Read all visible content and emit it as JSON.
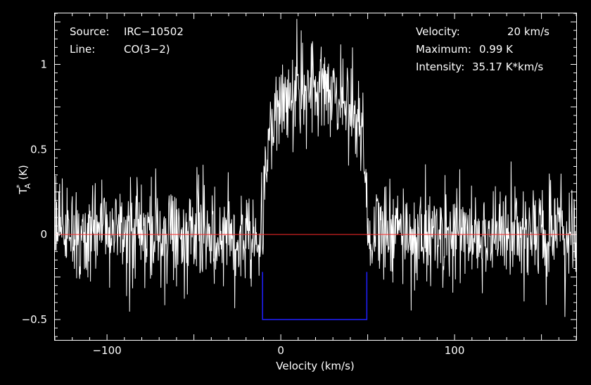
{
  "chart_data": {
    "type": "line",
    "xlabel": "Velocity (km/s)",
    "ylabel_main": "T",
    "ylabel_sup": "*",
    "ylabel_sub": "A",
    "ylabel_unit": " (K)",
    "xlim": [
      -130,
      170
    ],
    "ylim": [
      -0.62,
      1.3
    ],
    "xticks": [
      {
        "value": -100,
        "label": "−100"
      },
      {
        "value": 0,
        "label": "0"
      },
      {
        "value": 100,
        "label": "100"
      }
    ],
    "yticks": [
      {
        "value": -0.5,
        "label": "−0.5"
      },
      {
        "value": 0,
        "label": "0"
      },
      {
        "value": 0.5,
        "label": "0.5"
      },
      {
        "value": 1,
        "label": "1"
      }
    ],
    "grid": false,
    "info_left": [
      {
        "label": "Source:",
        "value": "IRC−10502"
      },
      {
        "label": "Line:",
        "value": "CO(3−2)"
      }
    ],
    "info_right": [
      {
        "label": "Velocity:",
        "value": "20 km/s"
      },
      {
        "label": "Maximum:",
        "value": "0.99 K"
      },
      {
        "label": "Intensity:",
        "value": "35.17 K*km/s"
      }
    ],
    "series": [
      {
        "style": "spectrum",
        "color": "#ffffff",
        "profile": "parabolic",
        "center": 20,
        "half_width": 30,
        "peak": 0.99,
        "noise_rms": 0.15,
        "channel_width": 0.25
      }
    ],
    "baseline": {
      "y": 0,
      "color": "#ff2a2a"
    },
    "integration_window": {
      "x": [
        -10.5,
        49.5
      ],
      "y": -0.5,
      "color": "#2020ff"
    }
  },
  "colors": {
    "background": "#000000",
    "axes": "#ffffff",
    "spectrum": "#ffffff",
    "baseline": "#ff2a2a",
    "window": "#2020ff"
  }
}
